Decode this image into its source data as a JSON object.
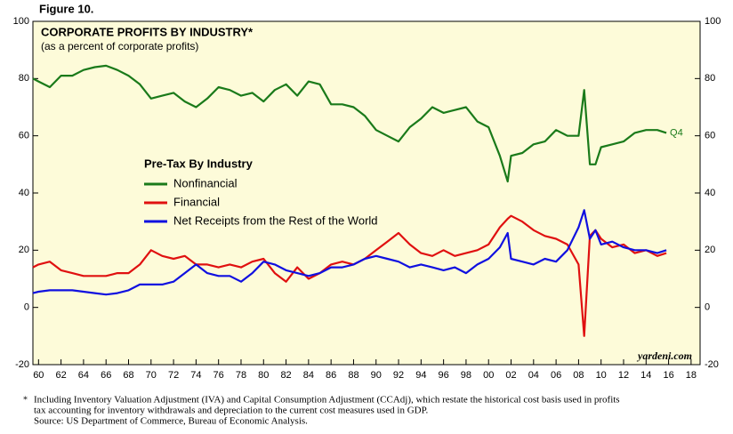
{
  "chart_data": {
    "type": "line",
    "figure_label": "Figure 10.",
    "title": "CORPORATE PROFITS BY INDUSTRY*",
    "subtitle": "(as a percent of corporate profits)",
    "legend_title": "Pre-Tax By Industry",
    "annotation": "Q4",
    "watermark": "yardeni.com",
    "notes": [
      "*",
      "Including Inventory Valuation Adjustment (IVA) and Capital Consumption Adjustment (CCAdj), which restate the historical cost basis used in profits",
      "tax accounting for inventory withdrawals and depreciation to the current cost measures used in GDP.",
      "Source: US Department of Commerce, Bureau of Economic Analysis."
    ],
    "x": [
      1959.5,
      1960,
      1961,
      1962,
      1963,
      1964,
      1965,
      1966,
      1967,
      1968,
      1969,
      1970,
      1971,
      1972,
      1973,
      1974,
      1975,
      1976,
      1977,
      1978,
      1979,
      1980,
      1981,
      1982,
      1983,
      1984,
      1985,
      1986,
      1987,
      1988,
      1989,
      1990,
      1991,
      1992,
      1993,
      1994,
      1995,
      1996,
      1997,
      1998,
      1999,
      2000,
      2001,
      2001.7,
      2002,
      2003,
      2004,
      2005,
      2006,
      2007,
      2008,
      2008.5,
      2009,
      2009.5,
      2010,
      2011,
      2012,
      2013,
      2014,
      2015,
      2015.8
    ],
    "series": [
      {
        "name": "Nonfinancial",
        "color": "#1a7a1a",
        "values": [
          80,
          79,
          77,
          81,
          81,
          83,
          84,
          84.5,
          83,
          81,
          78,
          73,
          74,
          75,
          72,
          70,
          73,
          77,
          76,
          74,
          75,
          72,
          76,
          78,
          74,
          79,
          78,
          71,
          71,
          70,
          67,
          62,
          60,
          58,
          63,
          66,
          70,
          68,
          69,
          70,
          65,
          63,
          53,
          44,
          53,
          54,
          57,
          58,
          62,
          60,
          60,
          76,
          50,
          50,
          56,
          57,
          58,
          61,
          62,
          62,
          61
        ]
      },
      {
        "name": "Financial",
        "color": "#e01010",
        "values": [
          14,
          15,
          16,
          13,
          12,
          11,
          11,
          11,
          12,
          12,
          15,
          20,
          18,
          17,
          18,
          15,
          15,
          14,
          15,
          14,
          16,
          17,
          12,
          9,
          14,
          10,
          12,
          15,
          16,
          15,
          17,
          20,
          23,
          26,
          22,
          19,
          18,
          20,
          18,
          19,
          20,
          22,
          28,
          31,
          32,
          30,
          27,
          25,
          24,
          22,
          15,
          -10,
          25,
          27,
          24,
          21,
          22,
          19,
          20,
          18,
          19
        ]
      },
      {
        "name": "Net Receipts from the Rest of the World",
        "color": "#1010e0",
        "values": [
          5,
          5.5,
          6,
          6,
          6,
          5.5,
          5,
          4.5,
          5,
          6,
          8,
          8,
          8,
          9,
          12,
          15,
          12,
          11,
          11,
          9,
          12,
          16,
          15,
          13,
          12,
          11,
          12,
          14,
          14,
          15,
          17,
          18,
          17,
          16,
          14,
          15,
          14,
          13,
          14,
          12,
          15,
          17,
          21,
          26,
          17,
          16,
          15,
          17,
          16,
          20,
          28,
          34,
          24,
          27,
          22,
          23,
          21,
          20,
          20,
          19,
          20
        ]
      }
    ],
    "xlim": [
      1959.5,
      2018.8
    ],
    "xticks": [
      {
        "value": 1960,
        "label": "60"
      },
      {
        "value": 1962,
        "label": "62"
      },
      {
        "value": 1964,
        "label": "64"
      },
      {
        "value": 1966,
        "label": "66"
      },
      {
        "value": 1968,
        "label": "68"
      },
      {
        "value": 1970,
        "label": "70"
      },
      {
        "value": 1972,
        "label": "72"
      },
      {
        "value": 1974,
        "label": "74"
      },
      {
        "value": 1976,
        "label": "76"
      },
      {
        "value": 1978,
        "label": "78"
      },
      {
        "value": 1980,
        "label": "80"
      },
      {
        "value": 1982,
        "label": "82"
      },
      {
        "value": 1984,
        "label": "84"
      },
      {
        "value": 1986,
        "label": "86"
      },
      {
        "value": 1988,
        "label": "88"
      },
      {
        "value": 1990,
        "label": "90"
      },
      {
        "value": 1992,
        "label": "92"
      },
      {
        "value": 1994,
        "label": "94"
      },
      {
        "value": 1996,
        "label": "96"
      },
      {
        "value": 1998,
        "label": "98"
      },
      {
        "value": 2000,
        "label": "00"
      },
      {
        "value": 2002,
        "label": "02"
      },
      {
        "value": 2004,
        "label": "04"
      },
      {
        "value": 2006,
        "label": "06"
      },
      {
        "value": 2008,
        "label": "08"
      },
      {
        "value": 2010,
        "label": "10"
      },
      {
        "value": 2012,
        "label": "12"
      },
      {
        "value": 2014,
        "label": "14"
      },
      {
        "value": 2016,
        "label": "16"
      },
      {
        "value": 2018,
        "label": "18"
      }
    ],
    "ylim": [
      -20,
      100
    ],
    "yticks": [
      -20,
      0,
      20,
      40,
      60,
      80,
      100
    ],
    "grid": false
  }
}
